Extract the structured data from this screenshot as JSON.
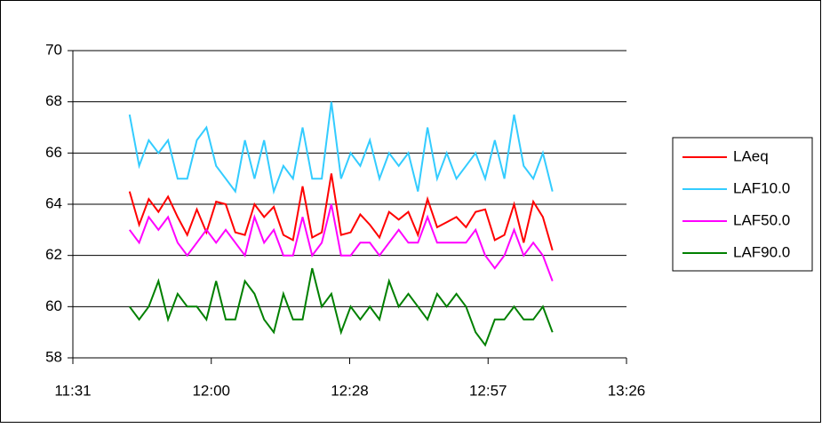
{
  "chart_data": {
    "type": "line",
    "x": [
      703,
      705,
      707,
      709,
      711,
      713,
      715,
      717,
      719,
      721,
      723,
      725,
      727,
      729,
      731,
      733,
      735,
      737,
      739,
      741,
      743,
      745,
      747,
      749,
      751,
      753,
      755,
      757,
      759,
      761,
      763,
      765,
      767,
      769,
      771,
      773,
      775,
      777,
      779,
      781,
      783,
      785,
      787,
      789,
      791
    ],
    "series": [
      {
        "name": "LAeq",
        "color": "#ff0000",
        "values": [
          64.5,
          63.2,
          64.2,
          63.7,
          64.3,
          63.5,
          62.8,
          63.8,
          62.9,
          64.1,
          64.0,
          62.9,
          62.8,
          64.0,
          63.5,
          63.9,
          62.8,
          62.6,
          64.7,
          62.7,
          62.9,
          65.2,
          62.8,
          62.9,
          63.6,
          63.2,
          62.7,
          63.7,
          63.4,
          63.7,
          62.8,
          64.2,
          63.1,
          63.3,
          63.5,
          63.1,
          63.7,
          63.8,
          62.6,
          62.8,
          64.0,
          62.5,
          64.1,
          63.5,
          62.2
        ]
      },
      {
        "name": "LAF10.0",
        "color": "#33ccff",
        "values": [
          67.5,
          65.5,
          66.5,
          66.0,
          66.5,
          65.0,
          65.0,
          66.5,
          67.0,
          65.5,
          65.0,
          64.5,
          66.5,
          65.0,
          66.5,
          64.5,
          65.5,
          65.0,
          67.0,
          65.0,
          65.0,
          68.0,
          65.0,
          66.0,
          65.5,
          66.5,
          65.0,
          66.0,
          65.5,
          66.0,
          64.5,
          67.0,
          65.0,
          66.0,
          65.0,
          65.5,
          66.0,
          65.0,
          66.5,
          65.0,
          67.5,
          65.5,
          65.0,
          66.0,
          64.5
        ]
      },
      {
        "name": "LAF50.0",
        "color": "#ff00ff",
        "values": [
          63.0,
          62.5,
          63.5,
          63.0,
          63.5,
          62.5,
          62.0,
          62.5,
          63.0,
          62.5,
          63.0,
          62.5,
          62.0,
          63.5,
          62.5,
          63.0,
          62.0,
          62.0,
          63.5,
          62.0,
          62.5,
          64.0,
          62.0,
          62.0,
          62.5,
          62.5,
          62.0,
          62.5,
          63.0,
          62.5,
          62.5,
          63.5,
          62.5,
          62.5,
          62.5,
          62.5,
          63.0,
          62.0,
          61.5,
          62.0,
          63.0,
          62.0,
          62.5,
          62.0,
          61.0
        ]
      },
      {
        "name": "LAF90.0",
        "color": "#008000",
        "values": [
          60.0,
          59.5,
          60.0,
          61.0,
          59.5,
          60.5,
          60.0,
          60.0,
          59.5,
          61.0,
          59.5,
          59.5,
          61.0,
          60.5,
          59.5,
          59.0,
          60.5,
          59.5,
          59.5,
          61.5,
          60.0,
          60.5,
          59.0,
          60.0,
          59.5,
          60.0,
          59.5,
          61.0,
          60.0,
          60.5,
          60.0,
          59.5,
          60.5,
          60.0,
          60.5,
          60.0,
          59.0,
          58.5,
          59.5,
          59.5,
          60.0,
          59.5,
          59.5,
          60.0,
          59.0
        ]
      }
    ],
    "xlim": [
      691.2,
      806.4
    ],
    "xticks": [
      {
        "value": 691.2,
        "label": "11:31"
      },
      {
        "value": 720,
        "label": "12:00"
      },
      {
        "value": 748.8,
        "label": "12:28"
      },
      {
        "value": 777.6,
        "label": "12:57"
      },
      {
        "value": 806.4,
        "label": "13:26"
      }
    ],
    "ylim": [
      58,
      70
    ],
    "yticks": [
      58,
      60,
      62,
      64,
      66,
      68,
      70
    ],
    "grid": true,
    "legend": "right"
  }
}
